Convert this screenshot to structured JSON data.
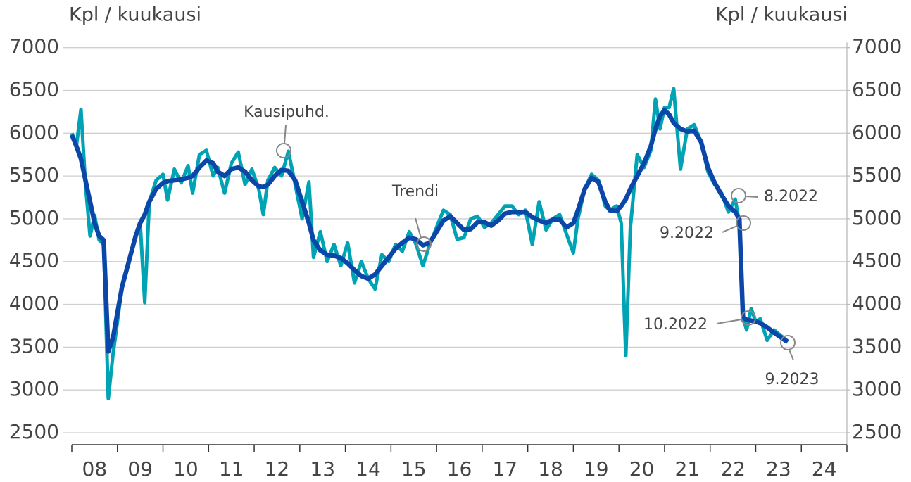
{
  "chart_data": {
    "type": "line",
    "y_label": "Kpl / kuukausi",
    "y2_label": "Kpl / kuukausi",
    "x": [
      2008.0,
      2008.1,
      2008.2,
      2008.3,
      2008.4,
      2008.5,
      2008.6,
      2008.7,
      2008.8,
      2008.9,
      2009.0,
      2009.1,
      2009.25,
      2009.4,
      2009.5,
      2009.6,
      2009.7,
      2009.85,
      2010.0,
      2010.1,
      2010.25,
      2010.4,
      2010.55,
      2010.65,
      2010.8,
      2010.95,
      2011.1,
      2011.2,
      2011.35,
      2011.5,
      2011.65,
      2011.8,
      2011.95,
      2012.1,
      2012.2,
      2012.3,
      2012.45,
      2012.6,
      2012.75,
      2012.9,
      2013.05,
      2013.2,
      2013.3,
      2013.45,
      2013.6,
      2013.75,
      2013.9,
      2014.05,
      2014.2,
      2014.35,
      2014.5,
      2014.65,
      2014.8,
      2014.95,
      2015.1,
      2015.25,
      2015.4,
      2015.55,
      2015.7,
      2015.85,
      2016.0,
      2016.15,
      2016.3,
      2016.45,
      2016.6,
      2016.75,
      2016.9,
      2017.05,
      2017.2,
      2017.35,
      2017.5,
      2017.65,
      2017.8,
      2017.95,
      2018.1,
      2018.25,
      2018.4,
      2018.55,
      2018.7,
      2018.85,
      2019.0,
      2019.1,
      2019.25,
      2019.4,
      2019.55,
      2019.7,
      2019.8,
      2019.95,
      2020.05,
      2020.15,
      2020.25,
      2020.4,
      2020.55,
      2020.7,
      2020.8,
      2020.9,
      2021.0,
      2021.1,
      2021.2,
      2021.35,
      2021.5,
      2021.65,
      2021.8,
      2021.95,
      2022.1,
      2022.25,
      2022.4,
      2022.55,
      2022.64,
      2022.72,
      2022.8,
      2022.9,
      2023.0,
      2023.1,
      2023.25,
      2023.4,
      2023.7
    ],
    "series": [
      {
        "name": "Kausipuhd.",
        "color": "#00a3b4",
        "values": [
          6000,
          5850,
          6280,
          5400,
          4800,
          5040,
          4750,
          4700,
          2900,
          3400,
          3800,
          4200,
          4500,
          4800,
          4950,
          4020,
          5200,
          5450,
          5520,
          5220,
          5580,
          5420,
          5620,
          5300,
          5750,
          5800,
          5500,
          5600,
          5300,
          5650,
          5780,
          5400,
          5580,
          5350,
          5050,
          5450,
          5600,
          5500,
          5790,
          5400,
          5000,
          5430,
          4550,
          4850,
          4500,
          4700,
          4450,
          4720,
          4250,
          4500,
          4300,
          4180,
          4580,
          4500,
          4700,
          4620,
          4850,
          4700,
          4450,
          4700,
          4900,
          5100,
          5050,
          4760,
          4780,
          5000,
          5030,
          4900,
          4950,
          5050,
          5150,
          5150,
          5050,
          5100,
          4700,
          5200,
          4870,
          5000,
          5050,
          4820,
          4600,
          5000,
          5350,
          5520,
          5450,
          5150,
          5100,
          5150,
          4950,
          3400,
          4900,
          5750,
          5600,
          5800,
          6400,
          6050,
          6300,
          6300,
          6520,
          5580,
          6050,
          6100,
          5900,
          5550,
          5400,
          5300,
          5080,
          5230,
          4950,
          3850,
          3700,
          3950,
          3800,
          3830,
          3580,
          3700,
          3570
        ]
      },
      {
        "name": "Trendi",
        "color": "#0a47a8",
        "values": [
          5980,
          5850,
          5700,
          5450,
          5200,
          4950,
          4800,
          4750,
          3450,
          3600,
          3900,
          4200,
          4500,
          4800,
          4950,
          5050,
          5200,
          5350,
          5420,
          5440,
          5450,
          5460,
          5480,
          5500,
          5600,
          5680,
          5650,
          5550,
          5500,
          5580,
          5600,
          5550,
          5450,
          5380,
          5370,
          5400,
          5500,
          5570,
          5560,
          5450,
          5200,
          4950,
          4750,
          4630,
          4580,
          4570,
          4540,
          4480,
          4400,
          4330,
          4300,
          4350,
          4450,
          4550,
          4650,
          4720,
          4780,
          4760,
          4690,
          4720,
          4850,
          4980,
          5030,
          4950,
          4870,
          4880,
          4960,
          4960,
          4920,
          4980,
          5060,
          5080,
          5080,
          5080,
          5020,
          4980,
          4950,
          4990,
          4990,
          4900,
          4950,
          5100,
          5350,
          5480,
          5430,
          5200,
          5100,
          5090,
          5150,
          5230,
          5350,
          5500,
          5650,
          5850,
          6050,
          6200,
          6270,
          6220,
          6120,
          6050,
          6020,
          6030,
          5900,
          5600,
          5420,
          5280,
          5150,
          5080,
          5000,
          3850,
          3820,
          3810,
          3800,
          3780,
          3730,
          3670,
          3560
        ]
      }
    ],
    "annotations": [
      "Kausipuhd.",
      "Trendi",
      "8.2022",
      "9.2022",
      "10.2022",
      "9.2023"
    ],
    "xlim": [
      2008,
      2025
    ],
    "xticks": [
      2008,
      2009,
      2010,
      2011,
      2012,
      2013,
      2014,
      2015,
      2016,
      2017,
      2018,
      2019,
      2020,
      2021,
      2022,
      2023,
      2024,
      2025
    ],
    "xtick_labels": [
      {
        "value": 2008.5,
        "label": "08"
      },
      {
        "value": 2009.5,
        "label": "09"
      },
      {
        "value": 2010.5,
        "label": "10"
      },
      {
        "value": 2011.5,
        "label": "11"
      },
      {
        "value": 2012.5,
        "label": "12"
      },
      {
        "value": 2013.5,
        "label": "13"
      },
      {
        "value": 2014.5,
        "label": "14"
      },
      {
        "value": 2015.5,
        "label": "15"
      },
      {
        "value": 2016.5,
        "label": "16"
      },
      {
        "value": 2017.5,
        "label": "17"
      },
      {
        "value": 2018.5,
        "label": "18"
      },
      {
        "value": 2019.5,
        "label": "19"
      },
      {
        "value": 2020.5,
        "label": "20"
      },
      {
        "value": 2021.5,
        "label": "21"
      },
      {
        "value": 2022.5,
        "label": "22"
      },
      {
        "value": 2023.5,
        "label": "23"
      },
      {
        "value": 2024.5,
        "label": "24"
      }
    ],
    "ylim": [
      2360,
      7060
    ],
    "yticks": [
      2500,
      3000,
      3500,
      4000,
      4500,
      5000,
      5500,
      6000,
      6500,
      7000
    ],
    "y2lim": [
      2360,
      7060
    ],
    "y2ticks": [
      2500,
      3000,
      3500,
      4000,
      4500,
      5000,
      5500,
      6000,
      6500,
      7000
    ],
    "grid": true
  }
}
